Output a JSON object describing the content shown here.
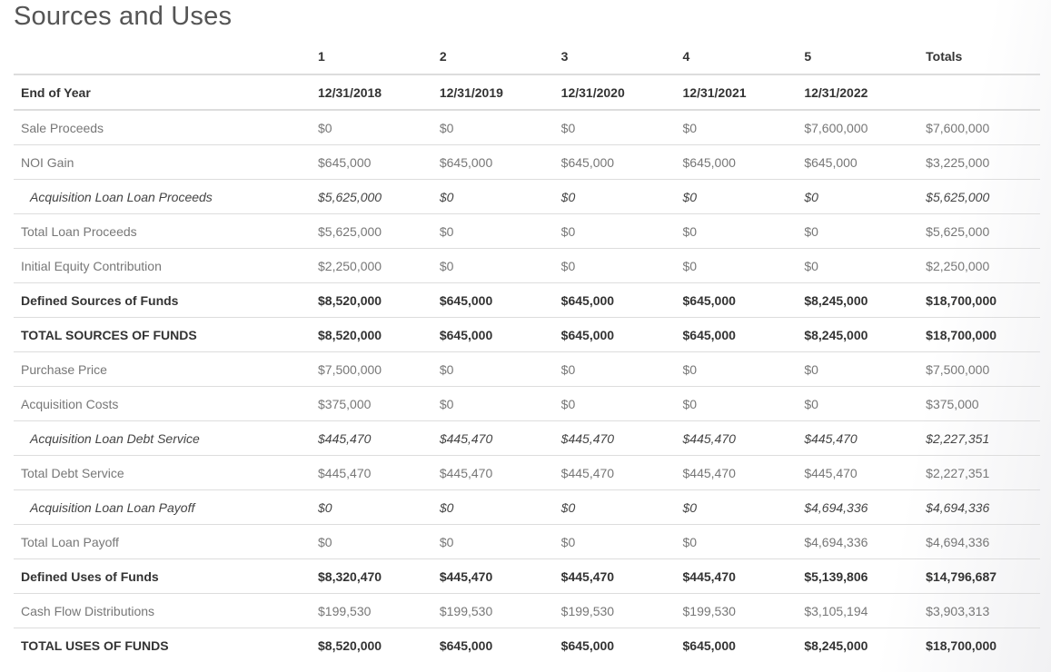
{
  "title": "Sources and Uses",
  "columns": [
    "1",
    "2",
    "3",
    "4",
    "5",
    "Totals"
  ],
  "end_of_year": {
    "label": "End of Year",
    "dates": [
      "12/31/2018",
      "12/31/2019",
      "12/31/2020",
      "12/31/2021",
      "12/31/2022",
      ""
    ]
  },
  "rows": [
    {
      "label": "Sale Proceeds",
      "style": "normal",
      "values": [
        "$0",
        "$0",
        "$0",
        "$0",
        "$7,600,000",
        "$7,600,000"
      ]
    },
    {
      "label": "NOI Gain",
      "style": "normal",
      "values": [
        "$645,000",
        "$645,000",
        "$645,000",
        "$645,000",
        "$645,000",
        "$3,225,000"
      ]
    },
    {
      "label": "Acquisition Loan Loan Proceeds",
      "style": "italic",
      "values": [
        "$5,625,000",
        "$0",
        "$0",
        "$0",
        "$0",
        "$5,625,000"
      ]
    },
    {
      "label": "Total Loan Proceeds",
      "style": "normal",
      "values": [
        "$5,625,000",
        "$0",
        "$0",
        "$0",
        "$0",
        "$5,625,000"
      ]
    },
    {
      "label": "Initial Equity Contribution",
      "style": "normal",
      "values": [
        "$2,250,000",
        "$0",
        "$0",
        "$0",
        "$0",
        "$2,250,000"
      ]
    },
    {
      "label": "Defined Sources of Funds",
      "style": "bold",
      "values": [
        "$8,520,000",
        "$645,000",
        "$645,000",
        "$645,000",
        "$8,245,000",
        "$18,700,000"
      ]
    },
    {
      "label": "TOTAL SOURCES OF FUNDS",
      "style": "bold",
      "values": [
        "$8,520,000",
        "$645,000",
        "$645,000",
        "$645,000",
        "$8,245,000",
        "$18,700,000"
      ]
    },
    {
      "label": "Purchase Price",
      "style": "normal",
      "values": [
        "$7,500,000",
        "$0",
        "$0",
        "$0",
        "$0",
        "$7,500,000"
      ]
    },
    {
      "label": "Acquisition Costs",
      "style": "normal",
      "values": [
        "$375,000",
        "$0",
        "$0",
        "$0",
        "$0",
        "$375,000"
      ]
    },
    {
      "label": "Acquisition Loan Debt Service",
      "style": "italic",
      "values": [
        "$445,470",
        "$445,470",
        "$445,470",
        "$445,470",
        "$445,470",
        "$2,227,351"
      ]
    },
    {
      "label": "Total Debt Service",
      "style": "normal",
      "values": [
        "$445,470",
        "$445,470",
        "$445,470",
        "$445,470",
        "$445,470",
        "$2,227,351"
      ]
    },
    {
      "label": "Acquisition Loan Loan Payoff",
      "style": "italic",
      "values": [
        "$0",
        "$0",
        "$0",
        "$0",
        "$4,694,336",
        "$4,694,336"
      ]
    },
    {
      "label": "Total Loan Payoff",
      "style": "normal",
      "values": [
        "$0",
        "$0",
        "$0",
        "$0",
        "$4,694,336",
        "$4,694,336"
      ]
    },
    {
      "label": "Defined Uses of Funds",
      "style": "bold",
      "values": [
        "$8,320,470",
        "$445,470",
        "$445,470",
        "$445,470",
        "$5,139,806",
        "$14,796,687"
      ]
    },
    {
      "label": "Cash Flow Distributions",
      "style": "normal",
      "values": [
        "$199,530",
        "$199,530",
        "$199,530",
        "$199,530",
        "$3,105,194",
        "$3,903,313"
      ]
    },
    {
      "label": "TOTAL USES OF FUNDS",
      "style": "bold",
      "values": [
        "$8,520,000",
        "$645,000",
        "$645,000",
        "$645,000",
        "$8,245,000",
        "$18,700,000"
      ]
    }
  ]
}
